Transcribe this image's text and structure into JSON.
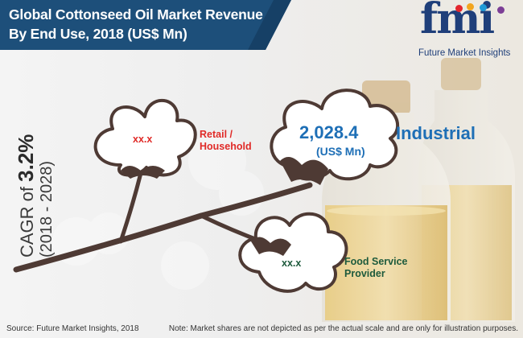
{
  "chart_data": {
    "type": "infographic",
    "title_line_1": "Global Cottonseed Oil Market Revenue",
    "title_line_2": "By End Use, 2018 (US$ Mn)",
    "cagr": {
      "prefix": "CAGR of ",
      "value": "3.2%",
      "period": "(2018 - 2028)"
    },
    "segments": [
      {
        "name": "Retail / Household",
        "name_lines": [
          "Retail /",
          "Household"
        ],
        "value": "xx.x",
        "color": "#e02a27"
      },
      {
        "name": "Industrial",
        "name_lines": [
          "Industrial"
        ],
        "value": "2,028.4",
        "unit": "(US$ Mn)",
        "color": "#1e6fb6"
      },
      {
        "name": "Food Service Provider",
        "name_lines": [
          "Food Service",
          "Provider"
        ],
        "value": "xx.x",
        "color": "#1d5a3c"
      }
    ]
  },
  "logo": {
    "text": "fmi",
    "tagline": "Future Market Insights",
    "dot_colors": [
      "#e3262e",
      "#f2a51f",
      "#1f9bd7",
      "#7c3e96"
    ]
  },
  "footer": {
    "source": "Source: Future Market Insights, 2018",
    "note": "Note: Market shares are not depicted as per the actual scale and are only for illustration purposes."
  }
}
